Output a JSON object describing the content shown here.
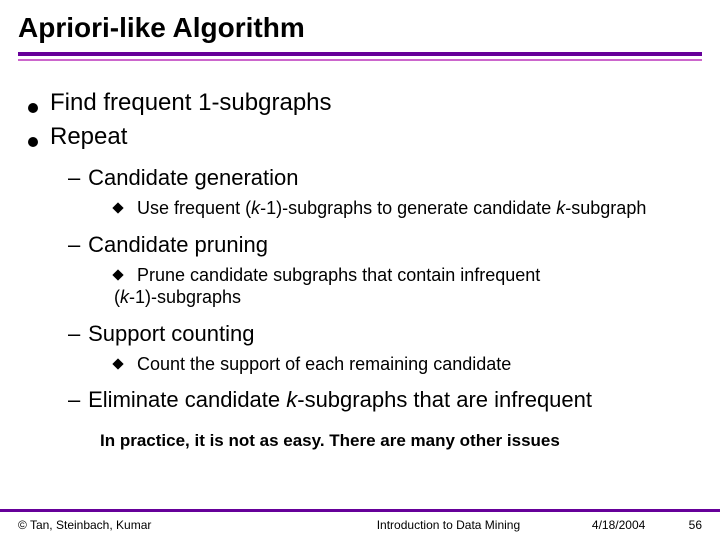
{
  "colors": {
    "rule_thick": "#660099",
    "rule_thin": "#cc66cc",
    "footer_bar": "#660099"
  },
  "title": "Apriori-like Algorithm",
  "bullets": {
    "b1": "Find frequent 1-subgraphs",
    "b2": "Repeat",
    "s1": "Candidate generation",
    "s1a_pre": "Use frequent (",
    "s1a_k1": "k",
    "s1a_mid": "-1)-subgraphs to generate candidate ",
    "s1a_k2": "k",
    "s1a_post": "-subgraph",
    "s2": "Candidate pruning",
    "s2a_pre": "Prune candidate subgraphs that contain infrequent ",
    "s2a_line2_open": "(",
    "s2a_k": "k",
    "s2a_line2_rest": "-1)-subgraphs",
    "s3": "Support counting",
    "s3a": "Count the support of each remaining candidate",
    "s4_pre": "Eliminate candidate ",
    "s4_k": "k",
    "s4_post": "-subgraphs that are infrequent"
  },
  "note": "In practice, it is not as easy. There are many other issues",
  "footer": {
    "left": "© Tan, Steinbach, Kumar",
    "center": "Introduction to Data Mining",
    "date": "4/18/2004",
    "page": "56"
  }
}
